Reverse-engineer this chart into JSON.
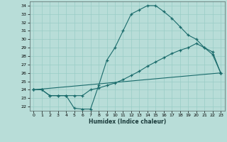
{
  "bg_color": "#b8ddd8",
  "line_color": "#1a6b6b",
  "grid_color": "#99ccc6",
  "xlabel": "Humidex (Indice chaleur)",
  "xlim": [
    -0.5,
    23.5
  ],
  "ylim": [
    21.5,
    34.5
  ],
  "xticks": [
    0,
    1,
    2,
    3,
    4,
    5,
    6,
    7,
    8,
    9,
    10,
    11,
    12,
    13,
    14,
    15,
    16,
    17,
    18,
    19,
    20,
    21,
    22,
    23
  ],
  "yticks": [
    22,
    23,
    24,
    25,
    26,
    27,
    28,
    29,
    30,
    31,
    32,
    33,
    34
  ],
  "line1_x": [
    0,
    1,
    2,
    3,
    4,
    5,
    6,
    7,
    8,
    9,
    10,
    11,
    12,
    13,
    14,
    15,
    16,
    17,
    18,
    19,
    20,
    21,
    22,
    23
  ],
  "line1_y": [
    24.0,
    24.0,
    23.3,
    23.3,
    23.3,
    21.8,
    21.7,
    21.7,
    24.5,
    27.5,
    29.0,
    31.0,
    33.0,
    33.5,
    34.0,
    34.0,
    33.3,
    32.5,
    31.5,
    30.5,
    30.0,
    29.0,
    28.5,
    26.0
  ],
  "line2_x": [
    0,
    1,
    2,
    3,
    4,
    5,
    6,
    7,
    8,
    9,
    10,
    11,
    12,
    13,
    14,
    15,
    16,
    17,
    18,
    19,
    20,
    21,
    22,
    23
  ],
  "line2_y": [
    24.0,
    24.0,
    23.3,
    23.3,
    23.3,
    23.3,
    23.3,
    24.0,
    24.2,
    24.5,
    24.8,
    25.2,
    25.7,
    26.2,
    26.8,
    27.3,
    27.8,
    28.3,
    28.7,
    29.0,
    29.5,
    29.0,
    28.2,
    26.0
  ],
  "line3_x": [
    0,
    23
  ],
  "line3_y": [
    24.0,
    26.0
  ]
}
